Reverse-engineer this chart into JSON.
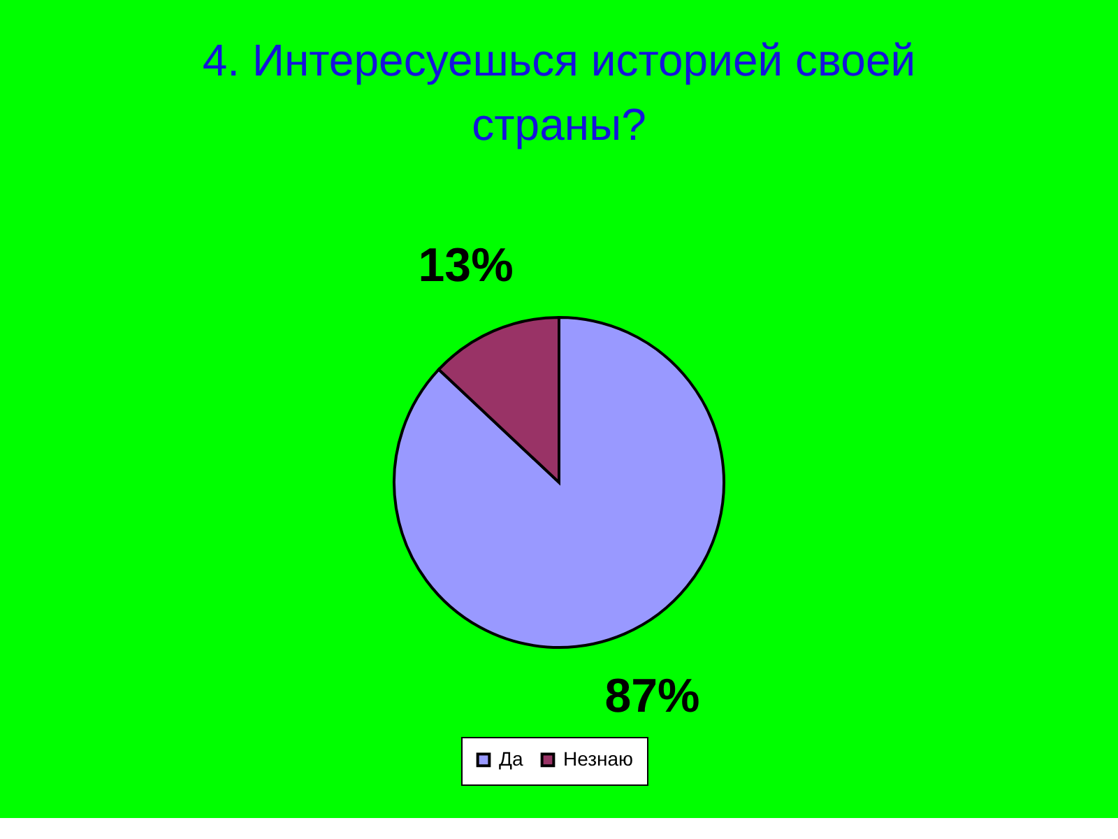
{
  "chart_data": {
    "type": "pie",
    "title": "4. Интересуешься историей своей страны?",
    "categories": [
      "Да",
      "Незнаю"
    ],
    "values": [
      87,
      13
    ],
    "colors": [
      "#9999ff",
      "#993366"
    ],
    "value_labels": [
      "87%",
      "13%"
    ],
    "legend": "bottom"
  }
}
